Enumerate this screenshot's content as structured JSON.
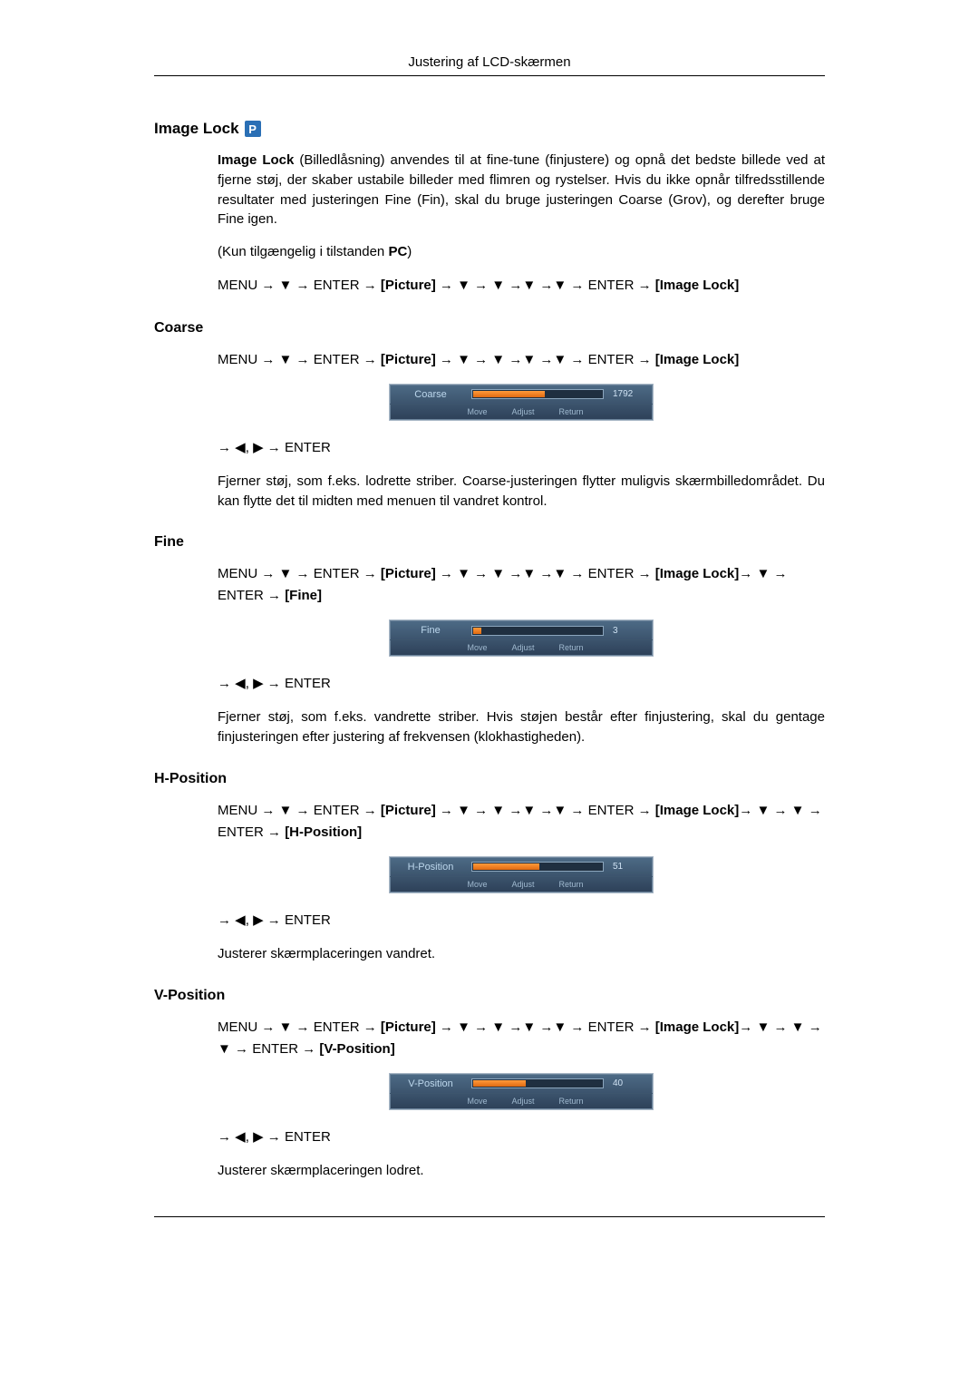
{
  "header": {
    "title": "Justering af LCD-skærmen"
  },
  "badge": {
    "letter": "P"
  },
  "arrows": {
    "right": "→",
    "down": "▼",
    "left": "◀",
    "rtri": "▶"
  },
  "labels": {
    "menu": "MENU",
    "enter": "ENTER",
    "picture": "[Picture]",
    "imagelock": "[Image Lock]",
    "fine": "[Fine]",
    "hpos": "[H-Position]",
    "vpos": "[V-Position]"
  },
  "osd_footer": {
    "move": "Move",
    "adjust": "Adjust",
    "return": "Return"
  },
  "sections": {
    "imagelock": {
      "title": "Image Lock",
      "p1_lead_bold": "Image Lock",
      "p1_rest": " (Billedlåsning) anvendes til at fine-tune (finjustere) og opnå det bedste billede ved at fjerne støj, der skaber ustabile billeder med flimren og rystelser. Hvis du ikke opnår tilfredsstillende resultater med justeringen Fine (Fin), skal du bruge justeringen Coarse (Grov), og derefter bruge Fine igen.",
      "p2_pre": "(Kun tilgængelig i tilstanden ",
      "p2_bold": "PC",
      "p2_post": ")"
    },
    "coarse": {
      "title": "Coarse",
      "osd": {
        "label": "Coarse",
        "value": "1792",
        "fill_pct": 55
      },
      "desc": "Fjerner støj, som f.eks. lodrette striber. Coarse-justeringen flytter muligvis skærmbilledområdet. Du kan flytte det til midten med menuen til vandret kontrol."
    },
    "fine": {
      "title": "Fine",
      "osd": {
        "label": "Fine",
        "value": "3",
        "fill_pct": 6
      },
      "desc": "Fjerner støj, som f.eks. vandrette striber. Hvis støjen består efter finjustering, skal du gentage finjusteringen efter justering af frekvensen (klokhastigheden)."
    },
    "hpos": {
      "title": "H-Position",
      "osd": {
        "label": "H-Position",
        "value": "51",
        "fill_pct": 51
      },
      "desc": "Justerer skærmplaceringen vandret."
    },
    "vpos": {
      "title": "V-Position",
      "osd": {
        "label": "V-Position",
        "value": "40",
        "fill_pct": 40
      },
      "desc": "Justerer skærmplaceringen lodret."
    }
  }
}
